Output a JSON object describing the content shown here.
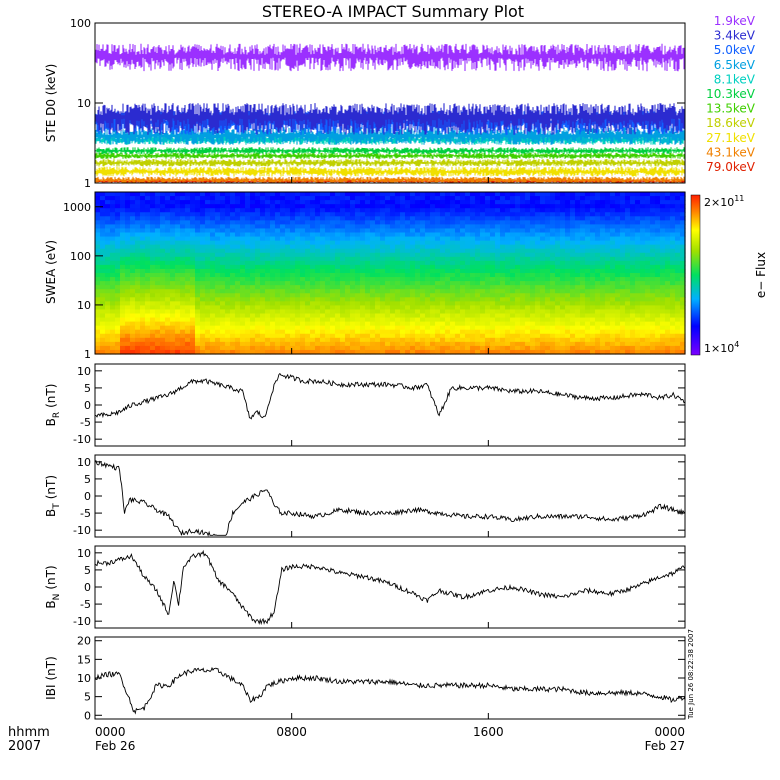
{
  "title": "STEREO-A IMPACT Summary Plot",
  "timestamp": "Tue Jun 26 08:22:38 2007",
  "footer": {
    "row1_label": "hhmm",
    "row2_label": "2007"
  },
  "x_axis": {
    "ticks": [
      {
        "hours": 0,
        "label": "0000",
        "date": "Feb 26"
      },
      {
        "hours": 8,
        "label": "0800",
        "date": ""
      },
      {
        "hours": 16,
        "label": "1600",
        "date": ""
      },
      {
        "hours": 24,
        "label": "0000",
        "date": "Feb 27"
      }
    ],
    "range_hours": [
      0,
      24
    ]
  },
  "legend_ste": [
    {
      "label": "1.9keV",
      "color": "#9b30ff"
    },
    {
      "label": "3.4keV",
      "color": "#2b2bd0"
    },
    {
      "label": "5.0keV",
      "color": "#1060ff"
    },
    {
      "label": "6.5keV",
      "color": "#00a0e0"
    },
    {
      "label": "8.1keV",
      "color": "#00d0c0"
    },
    {
      "label": "10.3keV",
      "color": "#00d040"
    },
    {
      "label": "13.5keV",
      "color": "#40d000"
    },
    {
      "label": "18.6keV",
      "color": "#c0d000"
    },
    {
      "label": "27.1keV",
      "color": "#f0e000"
    },
    {
      "label": "43.1keV",
      "color": "#f08000"
    },
    {
      "label": "79.0keV",
      "color": "#e02000"
    }
  ],
  "colorbar": {
    "label": "e− Flux",
    "max_label": "2×10",
    "max_exp": "11",
    "min_label": "1×10",
    "min_exp": "4"
  },
  "chart_data": [
    {
      "type": "line",
      "panel": "ste",
      "ylabel": "STE D0 (keV)",
      "yscale": "log",
      "ylim": [
        1,
        100
      ],
      "yticks": [
        "1",
        "10",
        "100"
      ],
      "series_levels": [
        {
          "name": "1.9keV",
          "range": [
            25,
            55
          ]
        },
        {
          "name": "3.4keV",
          "range": [
            4,
            10
          ]
        },
        {
          "name": "5.0keV",
          "range": [
            4,
            8
          ]
        },
        {
          "name": "6.5keV",
          "range": [
            3,
            5
          ]
        },
        {
          "name": "8.1keV",
          "range": [
            3,
            4
          ]
        },
        {
          "name": "10.3keV",
          "range": [
            2.3,
            2.8
          ]
        },
        {
          "name": "13.5keV",
          "range": [
            2,
            2.4
          ]
        },
        {
          "name": "18.6keV",
          "range": [
            1.6,
            2
          ]
        },
        {
          "name": "27.1keV",
          "range": [
            1.2,
            1.6
          ]
        },
        {
          "name": "43.1keV",
          "range": [
            1,
            1.2
          ]
        },
        {
          "name": "79.0keV",
          "range": [
            1,
            1.1
          ]
        }
      ]
    },
    {
      "type": "heatmap",
      "panel": "swea",
      "ylabel": "SWEA (eV)",
      "yscale": "log",
      "ylim": [
        1,
        2000
      ],
      "yticks": [
        "1",
        "10",
        "100",
        "1000"
      ],
      "zlim": [
        10000,
        200000000000
      ]
    },
    {
      "type": "line",
      "panel": "br",
      "ylabel": "B",
      "ylabel_sub": "R",
      "ylabel_unit": "(nT)",
      "ylim": [
        -12,
        12
      ],
      "yticks": [
        -10,
        -5,
        0,
        5,
        10
      ],
      "x": [
        0,
        0.5,
        1,
        1.5,
        2,
        2.5,
        3,
        3.5,
        4,
        4.5,
        5,
        5.5,
        6,
        6.3,
        6.6,
        6.9,
        7.2,
        7.5,
        8,
        8.5,
        9,
        10,
        11,
        12,
        13,
        13.5,
        14,
        14.5,
        15,
        16,
        17,
        18,
        19,
        20,
        21,
        22,
        22.5,
        23,
        23.5,
        24
      ],
      "y": [
        -3,
        -3,
        -2,
        0,
        1,
        2,
        3,
        5,
        7,
        7,
        6,
        5,
        4,
        -4,
        -2,
        -4,
        4,
        9,
        8,
        7,
        7,
        6,
        6,
        6,
        5,
        6,
        -3,
        5,
        5,
        5,
        4,
        4,
        3,
        2,
        2,
        3,
        3,
        2,
        3,
        1
      ]
    },
    {
      "type": "line",
      "panel": "bt",
      "ylabel": "B",
      "ylabel_sub": "T",
      "ylabel_unit": "(nT)",
      "ylim": [
        -12,
        12
      ],
      "yticks": [
        -10,
        -5,
        0,
        5,
        10
      ],
      "x": [
        0,
        0.5,
        1,
        1.2,
        1.4,
        2,
        3,
        3.5,
        4,
        4.5,
        5,
        5.3,
        5.6,
        6,
        6.5,
        7,
        7.3,
        7.6,
        8,
        9,
        10,
        11,
        12,
        13,
        14,
        15,
        16,
        17,
        18,
        19,
        20,
        21,
        22,
        22.5,
        23,
        23.5,
        24
      ],
      "y": [
        10,
        9,
        8,
        -5,
        -1,
        -2,
        -6,
        -11,
        -10,
        -11,
        -12,
        -12,
        -5,
        -2,
        0,
        2,
        -3,
        -5,
        -5,
        -6,
        -4,
        -5,
        -5,
        -4,
        -5,
        -6,
        -6,
        -7,
        -6,
        -6,
        -6,
        -7,
        -6,
        -5,
        -3,
        -4,
        -5
      ]
    },
    {
      "type": "line",
      "panel": "bn",
      "ylabel": "B",
      "ylabel_sub": "N",
      "ylabel_unit": "(nT)",
      "ylim": [
        -12,
        12
      ],
      "yticks": [
        -10,
        -5,
        0,
        5,
        10
      ],
      "x": [
        0,
        0.5,
        1,
        1.5,
        2,
        2.5,
        3,
        3.2,
        3.4,
        3.6,
        4,
        4.5,
        5,
        5.5,
        6,
        6.5,
        7,
        7.3,
        7.6,
        8,
        9,
        10,
        11,
        12,
        13,
        13.5,
        14,
        15,
        16,
        17,
        18,
        19,
        20,
        21,
        22,
        23,
        23.5,
        24
      ],
      "y": [
        7,
        7,
        8,
        9,
        3,
        -1,
        -8,
        2,
        -5,
        6,
        9,
        10,
        2,
        -1,
        -6,
        -10,
        -10,
        -7,
        5,
        6,
        6,
        4,
        3,
        1,
        -2,
        -4,
        -1,
        -3,
        -1,
        0,
        -2,
        -3,
        -1,
        -2,
        0,
        3,
        4,
        6
      ]
    },
    {
      "type": "line",
      "panel": "btot",
      "ylabel": "IBI",
      "ylabel_unit": "(nT)",
      "ylim": [
        -1,
        21
      ],
      "yticks": [
        0,
        5,
        10,
        15,
        20
      ],
      "x": [
        0,
        0.5,
        1,
        1.3,
        1.6,
        2,
        2.5,
        3,
        3.5,
        4,
        5,
        5.5,
        6,
        6.3,
        6.7,
        7,
        7.5,
        8,
        9,
        10,
        11,
        12,
        13,
        14,
        15,
        16,
        17,
        18,
        19,
        20,
        21,
        22,
        23,
        23.5,
        24
      ],
      "y": [
        10,
        11,
        11,
        6,
        1,
        2,
        8,
        8,
        11,
        12,
        12,
        10,
        8,
        4,
        5,
        8,
        9,
        10,
        10,
        9,
        9,
        9,
        8,
        8,
        8,
        8,
        7,
        7,
        7,
        6,
        6,
        6,
        5,
        4,
        5
      ]
    }
  ]
}
